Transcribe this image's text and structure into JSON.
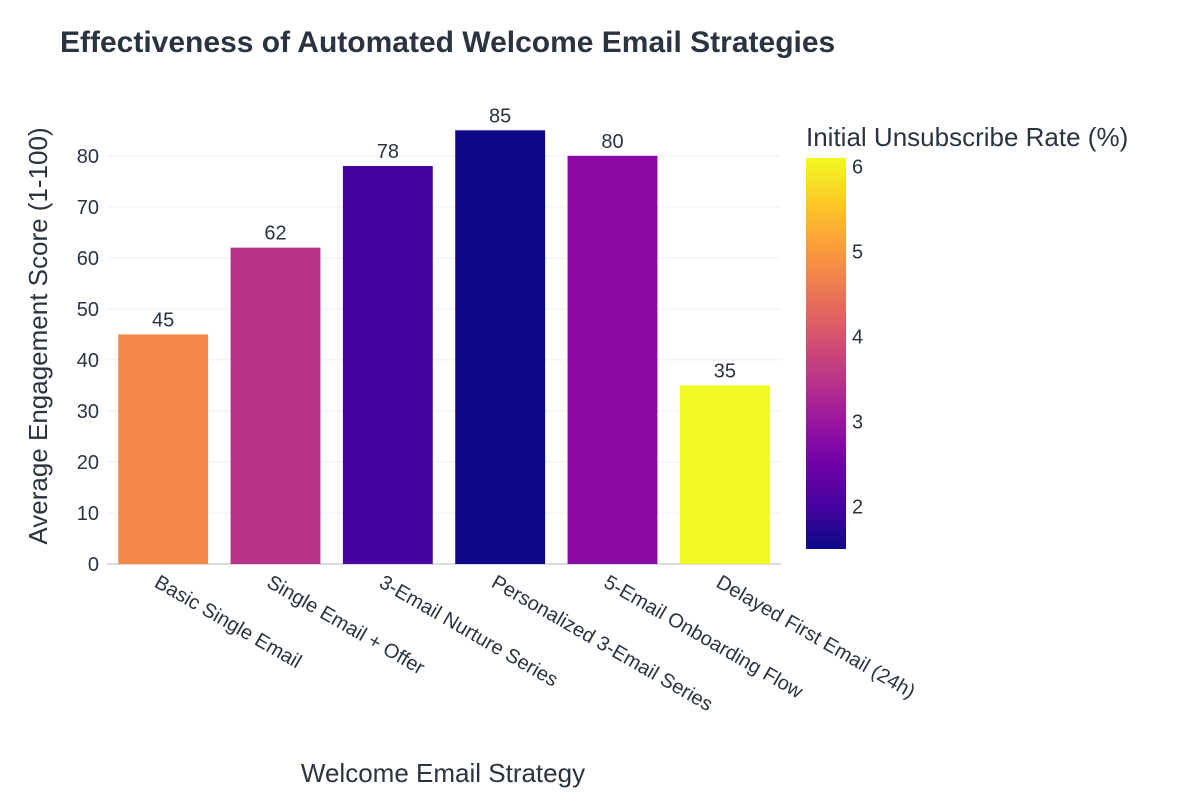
{
  "chart_data": {
    "type": "bar",
    "title": "Effectiveness of Automated Welcome Email Strategies",
    "xlabel": "Welcome Email Strategy",
    "ylabel": "Average Engagement Score (1-100)",
    "categories": [
      "Basic Single Email",
      "Single Email + Offer",
      "3-Email Nurture Series",
      "Personalized 3-Email Series",
      "5-Email Onboarding Flow",
      "Delayed First Email (24h)"
    ],
    "values": [
      45,
      62,
      78,
      85,
      80,
      35
    ],
    "data_labels": [
      "45",
      "62",
      "78",
      "85",
      "80",
      "35"
    ],
    "colors": [
      "#f48849",
      "#b83289",
      "#47039f",
      "#0d0887",
      "#8b0aa5",
      "#f0f921"
    ],
    "ylim": [
      0,
      88
    ],
    "yticks": [
      "0",
      "10",
      "20",
      "30",
      "40",
      "50",
      "60",
      "70",
      "80"
    ],
    "grid": true,
    "colorbar": {
      "title": "Initial Unsubscribe Rate (%)",
      "range": [
        1.5,
        6.1
      ],
      "ticks": [
        "2",
        "3",
        "4",
        "5",
        "6"
      ],
      "scale": [
        "#0d0887",
        "#46039f",
        "#7201a8",
        "#9c179e",
        "#bd3786",
        "#d8576b",
        "#ed7953",
        "#fb9f3a",
        "#fdca26",
        "#f0f921"
      ]
    }
  }
}
